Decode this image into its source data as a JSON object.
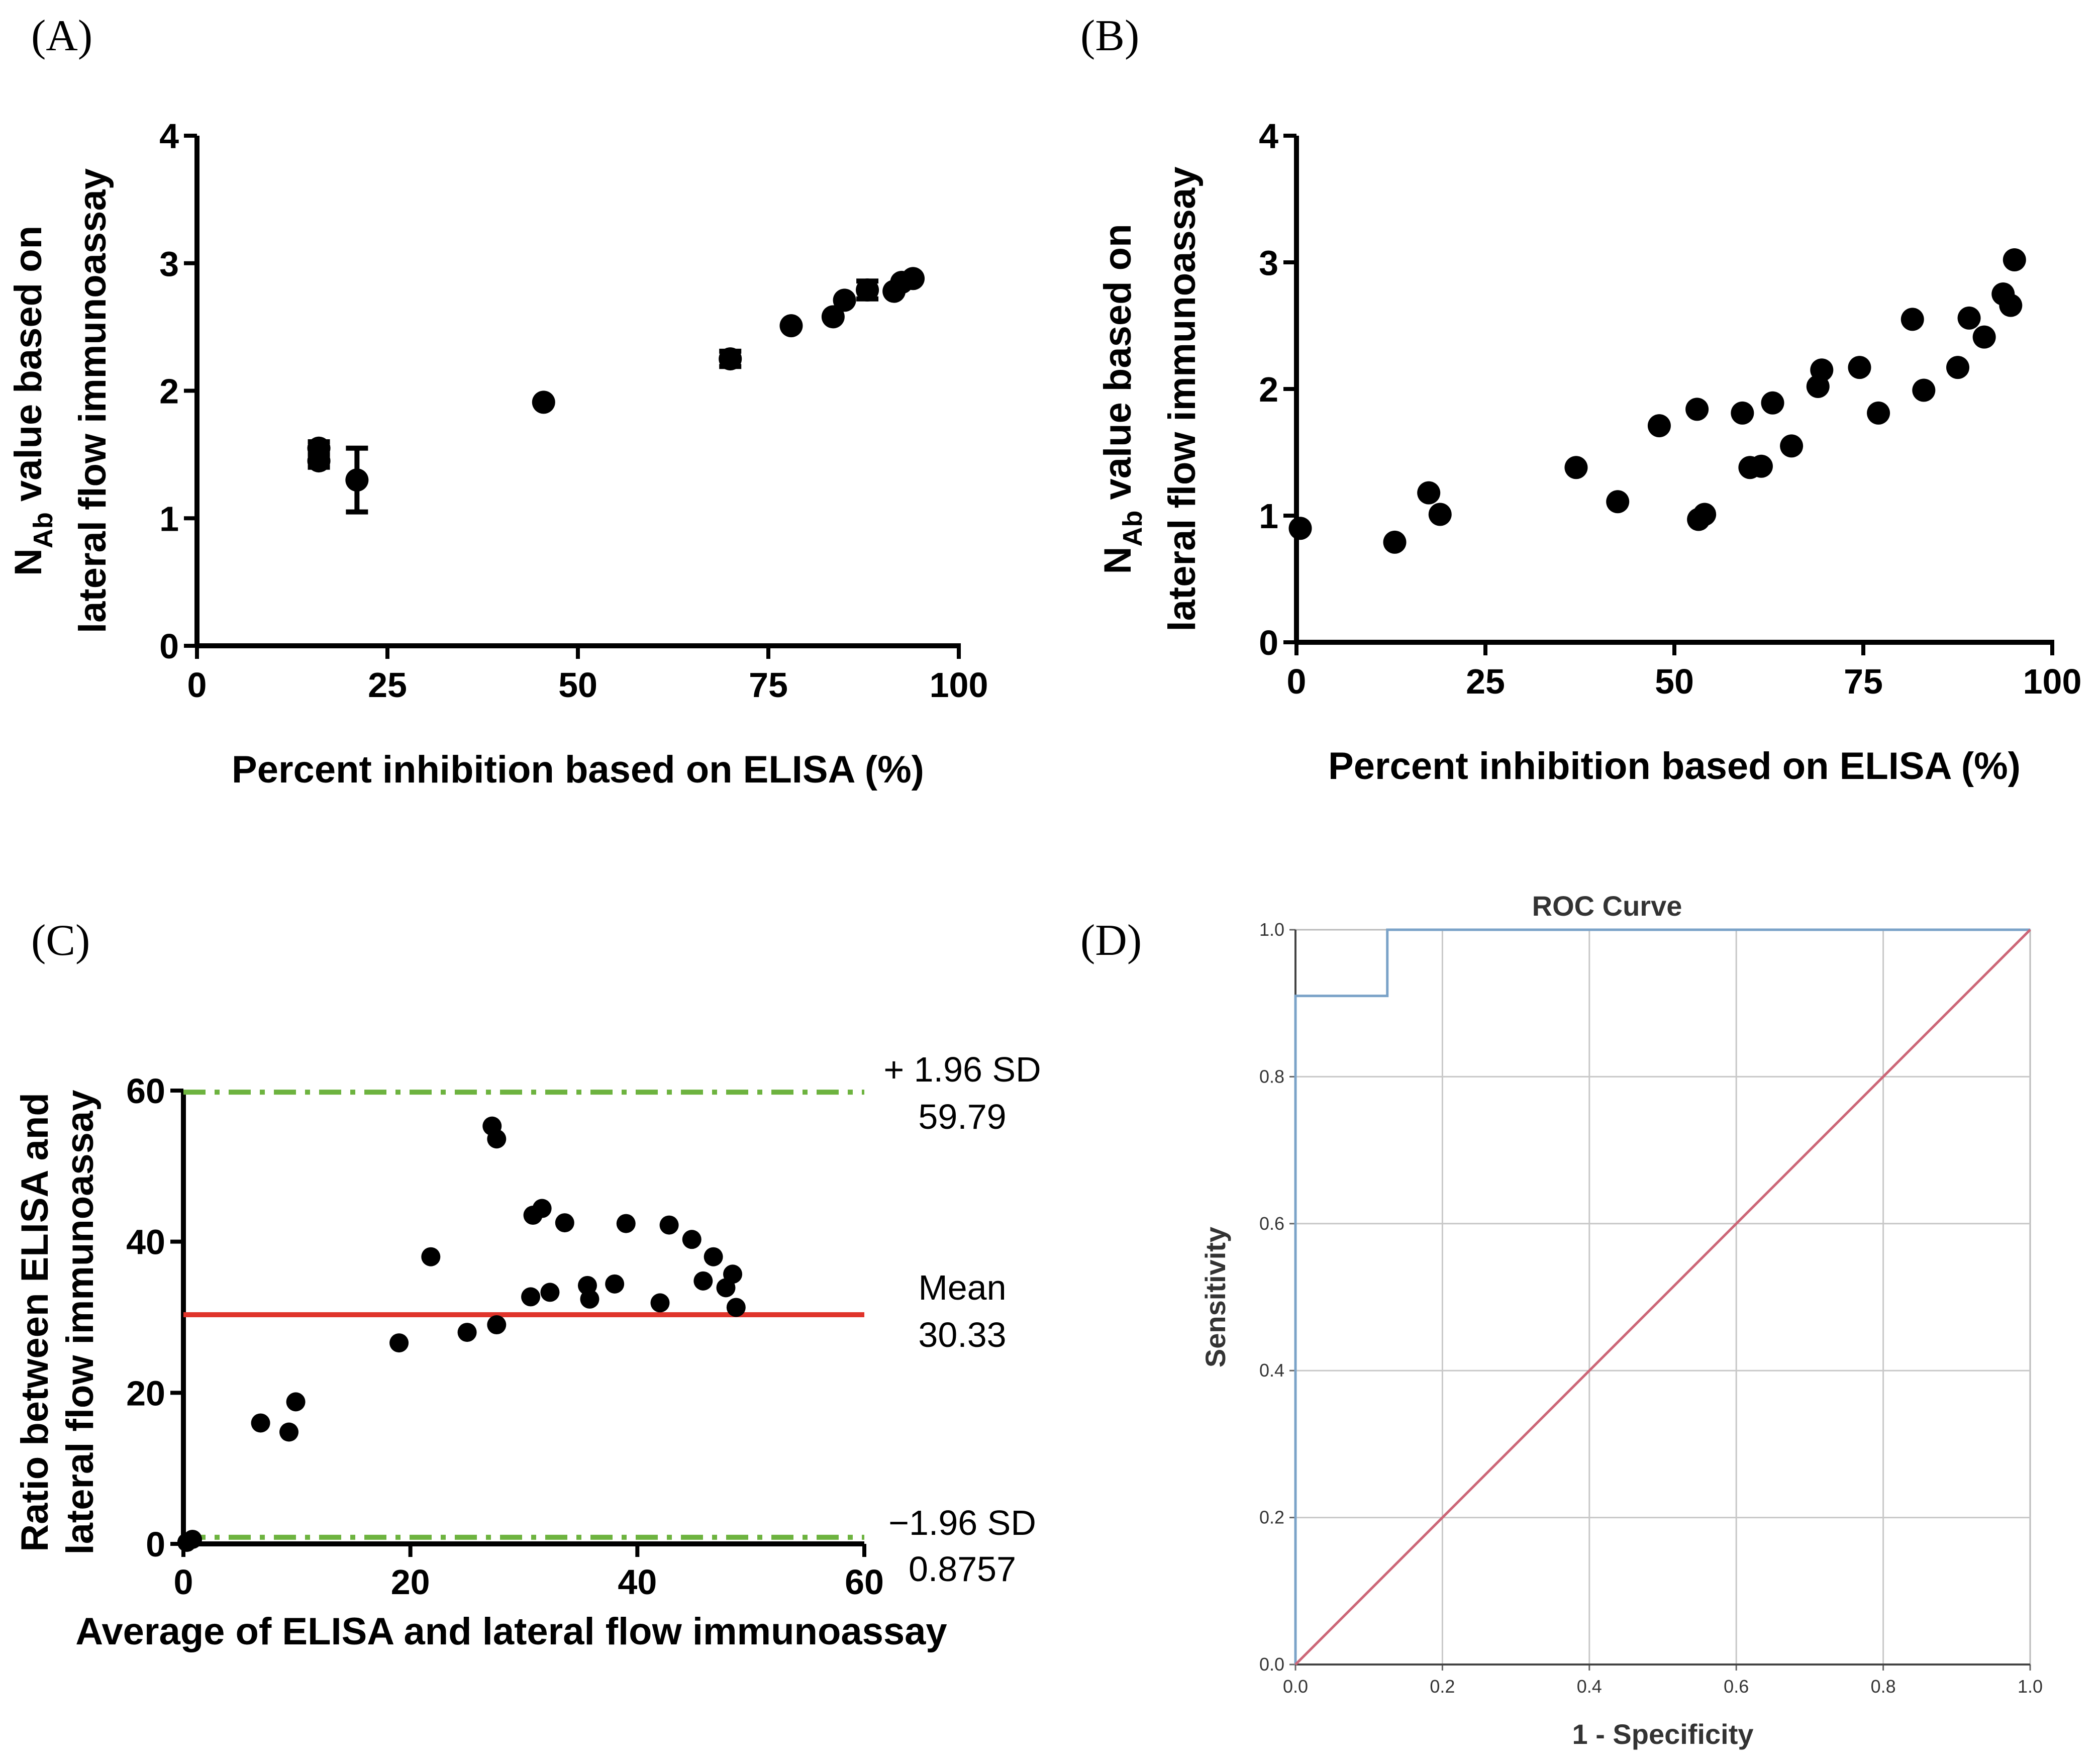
{
  "panel_labels": [
    "(A)",
    "(B)",
    "(C)",
    "(D)"
  ],
  "chart_data": [
    {
      "id": "A",
      "type": "scatter",
      "error_bars": true,
      "xlabel": "Percent inhibition based on ELISA (%)",
      "ylabel_line1_main": "N",
      "ylabel_line1_sub": "Ab",
      "ylabel_line1_rest": " value based on",
      "ylabel_line2": "lateral flow immunoassay",
      "xlim": [
        0,
        100
      ],
      "ylim": [
        0,
        4
      ],
      "xticks": [
        "0",
        "25",
        "50",
        "75",
        "100"
      ],
      "yticks": [
        "0",
        "1",
        "2",
        "3",
        "4"
      ],
      "points": [
        {
          "x": 16,
          "y": 1.55,
          "err": 0.05
        },
        {
          "x": 16,
          "y": 1.45,
          "err": 0.05
        },
        {
          "x": 21,
          "y": 1.3,
          "err": 0.25
        },
        {
          "x": 45.5,
          "y": 1.91,
          "err": 0
        },
        {
          "x": 70,
          "y": 2.25,
          "err": 0.06
        },
        {
          "x": 78,
          "y": 2.51,
          "err": 0
        },
        {
          "x": 83.5,
          "y": 2.58,
          "err": 0
        },
        {
          "x": 85,
          "y": 2.71,
          "err": 0
        },
        {
          "x": 88,
          "y": 2.79,
          "err": 0.07
        },
        {
          "x": 91.5,
          "y": 2.78,
          "err": 0
        },
        {
          "x": 92.5,
          "y": 2.85,
          "err": 0
        },
        {
          "x": 94,
          "y": 2.88,
          "err": 0
        }
      ]
    },
    {
      "id": "B",
      "type": "scatter",
      "xlabel": "Percent inhibition based on ELISA (%)",
      "ylabel_line1_main": "N",
      "ylabel_line1_sub": "Ab",
      "ylabel_line1_rest": " value based on",
      "ylabel_line2": "lateral flow immunoassay",
      "xlim": [
        0,
        100
      ],
      "ylim": [
        0,
        4
      ],
      "xticks": [
        "0",
        "25",
        "50",
        "75",
        "100"
      ],
      "yticks": [
        "0",
        "1",
        "2",
        "3",
        "4"
      ],
      "points": [
        {
          "x": 0.5,
          "y": 0.9
        },
        {
          "x": 13,
          "y": 0.79
        },
        {
          "x": 17.5,
          "y": 1.18
        },
        {
          "x": 19,
          "y": 1.01
        },
        {
          "x": 37,
          "y": 1.38
        },
        {
          "x": 42.5,
          "y": 1.11
        },
        {
          "x": 48,
          "y": 1.71
        },
        {
          "x": 53,
          "y": 1.84
        },
        {
          "x": 53.2,
          "y": 0.97
        },
        {
          "x": 54,
          "y": 1.01
        },
        {
          "x": 59,
          "y": 1.81
        },
        {
          "x": 60,
          "y": 1.38
        },
        {
          "x": 61.5,
          "y": 1.39
        },
        {
          "x": 63,
          "y": 1.89
        },
        {
          "x": 65.5,
          "y": 1.55
        },
        {
          "x": 69,
          "y": 2.02
        },
        {
          "x": 69.5,
          "y": 2.15
        },
        {
          "x": 74.5,
          "y": 2.17
        },
        {
          "x": 77,
          "y": 1.81
        },
        {
          "x": 81.5,
          "y": 2.55
        },
        {
          "x": 83,
          "y": 1.99
        },
        {
          "x": 87.5,
          "y": 2.17
        },
        {
          "x": 89,
          "y": 2.56
        },
        {
          "x": 91,
          "y": 2.41
        },
        {
          "x": 93.5,
          "y": 2.75
        },
        {
          "x": 94.5,
          "y": 2.66
        },
        {
          "x": 95,
          "y": 3.02
        }
      ]
    },
    {
      "id": "C",
      "type": "scatter",
      "subtype": "bland-altman",
      "xlabel": "Average of ELISA and lateral flow immunoassay",
      "ylabel_line1": "Ratio between ELISA and",
      "ylabel_line2": "lateral flow immunoassay",
      "xlim": [
        0,
        60
      ],
      "ylim": [
        0,
        60
      ],
      "xticks": [
        "0",
        "20",
        "40",
        "60"
      ],
      "yticks": [
        "0",
        "20",
        "40",
        "60"
      ],
      "lines": [
        {
          "name": "upper",
          "y": 59.79,
          "label_top": "+ 1.96 SD",
          "label_bottom": "59.79",
          "style": "dash-dot",
          "color": "#6db33f"
        },
        {
          "name": "mean",
          "y": 30.33,
          "label_top": "Mean",
          "label_bottom": "30.33",
          "style": "solid",
          "color": "#e0342b"
        },
        {
          "name": "lower",
          "y": 0.8757,
          "label_top": "−1.96 SD",
          "label_bottom": "0.8757",
          "style": "dash-dot",
          "color": "#6db33f"
        }
      ],
      "points": [
        {
          "x": 0.3,
          "y": 0.2
        },
        {
          "x": 0.8,
          "y": 0.6
        },
        {
          "x": 6.8,
          "y": 16
        },
        {
          "x": 9.3,
          "y": 14.8
        },
        {
          "x": 9.9,
          "y": 18.8
        },
        {
          "x": 19,
          "y": 26.6
        },
        {
          "x": 21.8,
          "y": 38
        },
        {
          "x": 25,
          "y": 28
        },
        {
          "x": 27.2,
          "y": 55.3
        },
        {
          "x": 27.6,
          "y": 53.6
        },
        {
          "x": 27.6,
          "y": 29
        },
        {
          "x": 30.6,
          "y": 32.7
        },
        {
          "x": 30.8,
          "y": 43.5
        },
        {
          "x": 31.6,
          "y": 44.4
        },
        {
          "x": 32.3,
          "y": 33.3
        },
        {
          "x": 33.6,
          "y": 42.5
        },
        {
          "x": 35.6,
          "y": 34.2
        },
        {
          "x": 35.8,
          "y": 32.4
        },
        {
          "x": 38,
          "y": 34.4
        },
        {
          "x": 39,
          "y": 42.4
        },
        {
          "x": 42,
          "y": 31.9
        },
        {
          "x": 42.8,
          "y": 42.2
        },
        {
          "x": 44.8,
          "y": 40.3
        },
        {
          "x": 45.8,
          "y": 34.8
        },
        {
          "x": 46.7,
          "y": 38
        },
        {
          "x": 47.8,
          "y": 33.9
        },
        {
          "x": 48.4,
          "y": 35.7
        },
        {
          "x": 48.7,
          "y": 31.3
        }
      ]
    },
    {
      "id": "D",
      "type": "line",
      "title": "ROC Curve",
      "xlabel": "1 - Specificity",
      "ylabel": "Sensitivity",
      "xlim": [
        0,
        1
      ],
      "ylim": [
        0,
        1
      ],
      "grid": true,
      "xticks": [
        "0.0",
        "0.2",
        "0.4",
        "0.6",
        "0.8",
        "1.0"
      ],
      "yticks": [
        "0.0",
        "0.2",
        "0.4",
        "0.6",
        "0.8",
        "1.0"
      ],
      "series": [
        {
          "name": "roc",
          "color": "#7ba3c8",
          "x": [
            0,
            0,
            0.125,
            0.125,
            1
          ],
          "y": [
            0,
            0.91,
            0.91,
            1,
            1
          ]
        },
        {
          "name": "reference",
          "color": "#cc6677",
          "x": [
            0,
            1
          ],
          "y": [
            0,
            1
          ]
        }
      ]
    }
  ]
}
